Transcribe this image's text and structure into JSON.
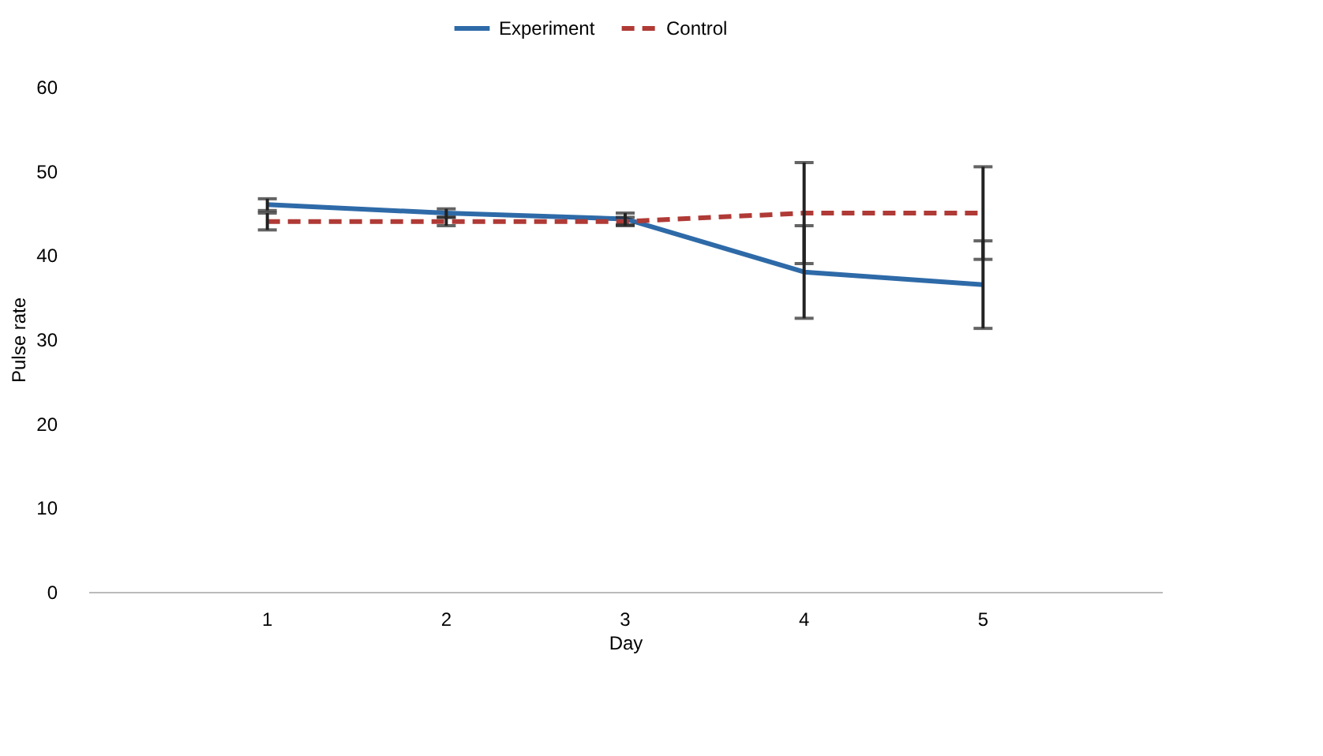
{
  "chart_data": {
    "type": "line",
    "xlabel": "Day",
    "ylabel": "Pulse rate",
    "categories": [
      "1",
      "2",
      "3",
      "4",
      "5"
    ],
    "series": [
      {
        "name": "Experiment",
        "color": "#2e6aa8",
        "line_style": "solid",
        "values": [
          46,
          45,
          44.3,
          38,
          36.5
        ],
        "errors": [
          0.7,
          0.5,
          0.7,
          5.5,
          5.2
        ]
      },
      {
        "name": "Control",
        "color": "#b03a36",
        "line_style": "dashed",
        "values": [
          44,
          44,
          44,
          45,
          45
        ],
        "errors": [
          1,
          0.5,
          0.5,
          6,
          5.5
        ]
      }
    ],
    "ylim": [
      0,
      60
    ],
    "yticks": [
      0,
      10,
      20,
      30,
      40,
      50,
      60
    ],
    "grid": false,
    "legend": "top",
    "marker": "none"
  }
}
